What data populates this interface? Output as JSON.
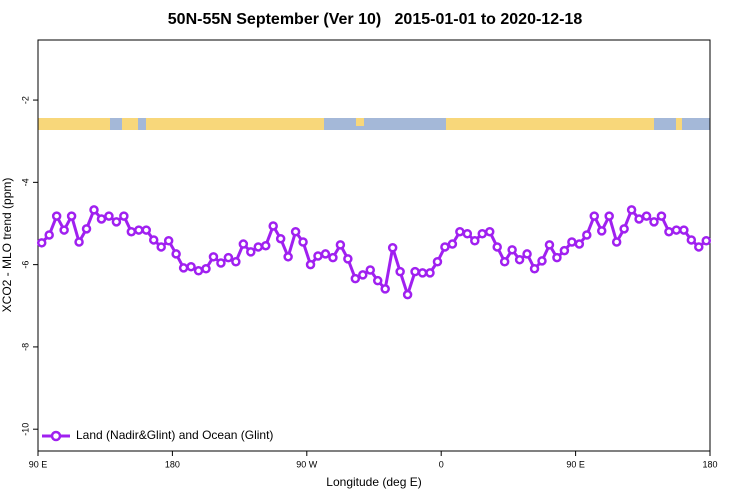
{
  "chart_data": {
    "type": "line",
    "title": "50N-55N September (Ver 10)   2015-01-01 to 2020-12-18",
    "xlabel": "Longitude (deg E)",
    "ylabel": "XCO2 - MLO trend (ppm)",
    "xlim": [
      90,
      540
    ],
    "ylim": [
      -10.53,
      -0.54
    ],
    "xticks": [
      {
        "value": 90,
        "label": "90 E"
      },
      {
        "value": 180,
        "label": "180"
      },
      {
        "value": 270,
        "label": "90 W"
      },
      {
        "value": 360,
        "label": "0"
      },
      {
        "value": 450,
        "label": "90 E"
      },
      {
        "value": 540,
        "label": "180"
      }
    ],
    "yticks": [
      -2,
      -4,
      -6,
      -8,
      -10
    ],
    "legend": "bottom-left",
    "x": [
      92.5,
      97.5,
      102.5,
      107.5,
      112.5,
      117.5,
      122.5,
      127.5,
      132.5,
      137.5,
      142.5,
      147.5,
      152.5,
      157.5,
      162.5,
      167.5,
      172.5,
      177.5,
      182.5,
      187.5,
      192.5,
      197.5,
      202.5,
      207.5,
      212.5,
      217.5,
      222.5,
      227.5,
      232.5,
      237.5,
      242.5,
      247.5,
      252.5,
      257.5,
      262.5,
      267.5,
      272.5,
      277.5,
      282.5,
      287.5,
      292.5,
      297.5,
      302.5,
      307.5,
      312.5,
      317.5,
      322.5,
      327.5,
      332.5,
      337.5,
      342.5,
      347.5,
      352.5,
      357.5,
      362.5,
      367.5,
      372.5,
      377.5,
      382.5,
      387.5,
      392.5,
      397.5,
      402.5,
      407.5,
      412.5,
      417.5,
      422.5,
      427.5,
      432.5,
      437.5,
      442.5,
      447.5,
      452.5,
      457.5,
      462.5,
      467.5,
      472.5,
      477.5,
      482.5,
      487.5,
      492.5,
      497.5,
      502.5,
      507.5,
      512.5,
      517.5,
      522.5,
      527.5,
      532.5,
      537.5
    ],
    "series": [
      {
        "name": "Land (Nadir&Glint) and Ocean (Glint)",
        "color": "#a020f0",
        "values": [
          -5.47,
          -5.28,
          -4.82,
          -5.16,
          -4.82,
          -5.45,
          -5.13,
          -4.67,
          -4.89,
          -4.82,
          -4.96,
          -4.82,
          -5.2,
          -5.16,
          -5.16,
          -5.4,
          -5.57,
          -5.42,
          -5.74,
          -6.08,
          -6.05,
          -6.15,
          -6.1,
          -5.81,
          -5.96,
          -5.83,
          -5.93,
          -5.5,
          -5.69,
          -5.57,
          -5.54,
          -5.06,
          -5.37,
          -5.81,
          -5.2,
          -5.45,
          -6.0,
          -5.79,
          -5.74,
          -5.83,
          -5.52,
          -5.86,
          -6.34,
          -6.25,
          -6.13,
          -6.39,
          -6.59,
          -5.59,
          -6.17,
          -6.73,
          -6.17,
          -6.2,
          -6.2,
          -5.93,
          -5.57,
          -5.5,
          -5.2,
          -5.25,
          -5.42,
          -5.25,
          -5.2,
          -5.57,
          -5.93,
          -5.64,
          -5.88,
          -5.74,
          -6.1,
          -5.91,
          -5.52,
          -5.83,
          -5.66,
          -5.45,
          -5.5,
          -5.28,
          -4.82,
          -5.18,
          -4.82,
          -5.45,
          -5.13,
          -4.67,
          -4.89,
          -4.82,
          -4.96,
          -4.82,
          -5.2,
          -5.16,
          -5.16,
          -5.4,
          -5.57,
          -5.42
        ]
      }
    ]
  }
}
